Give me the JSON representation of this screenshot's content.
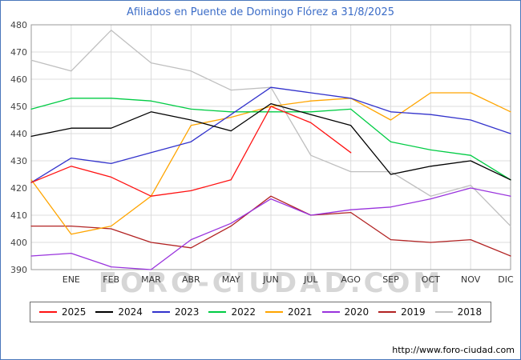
{
  "footer": {
    "url": "http://www.foro-ciudad.com"
  },
  "watermark": "FORO-CIUDAD.COM",
  "chart_data": {
    "type": "line",
    "title": "Afiliados en Puente de Domingo Flórez a 31/8/2025",
    "xlabel": "",
    "ylabel": "",
    "months": [
      "ENE",
      "FEB",
      "MAR",
      "ABR",
      "MAY",
      "JUN",
      "JUL",
      "AGO",
      "SEP",
      "OCT",
      "NOV",
      "DIC"
    ],
    "x_note": "each series has a starting point at the left axis edge, then one value per month; 2025 ends at AGO",
    "ylim": [
      390,
      480
    ],
    "yticks": [
      390,
      400,
      410,
      420,
      430,
      440,
      450,
      460,
      470,
      480
    ],
    "grid": true,
    "legend_position": "bottom",
    "series": [
      {
        "name": "2025",
        "color": "#ff1111",
        "values": [
          422,
          428,
          424,
          417,
          419,
          423,
          450,
          444,
          433
        ]
      },
      {
        "name": "2024",
        "color": "#000000",
        "values": [
          439,
          442,
          442,
          448,
          445,
          441,
          451,
          447,
          443,
          425,
          428,
          430,
          423
        ]
      },
      {
        "name": "2023",
        "color": "#3333cc",
        "values": [
          422,
          431,
          429,
          433,
          437,
          447,
          457,
          455,
          453,
          448,
          447,
          445,
          440
        ]
      },
      {
        "name": "2022",
        "color": "#00cc44",
        "values": [
          449,
          453,
          453,
          452,
          449,
          448,
          448,
          448,
          449,
          437,
          434,
          432,
          423
        ]
      },
      {
        "name": "2021",
        "color": "#ffa500",
        "values": [
          423,
          403,
          406,
          417,
          443,
          446,
          450,
          452,
          453,
          445,
          455,
          455,
          448
        ]
      },
      {
        "name": "2020",
        "color": "#9933dd",
        "values": [
          395,
          396,
          391,
          390,
          401,
          407,
          416,
          410,
          412,
          413,
          416,
          420,
          417
        ]
      },
      {
        "name": "2019",
        "color": "#b22222",
        "values": [
          406,
          406,
          405,
          400,
          398,
          406,
          417,
          410,
          411,
          401,
          400,
          401,
          395
        ]
      },
      {
        "name": "2018",
        "color": "#bfbfbf",
        "values": [
          467,
          463,
          478,
          466,
          463,
          456,
          457,
          432,
          426,
          426,
          417,
          421,
          406
        ]
      }
    ]
  }
}
